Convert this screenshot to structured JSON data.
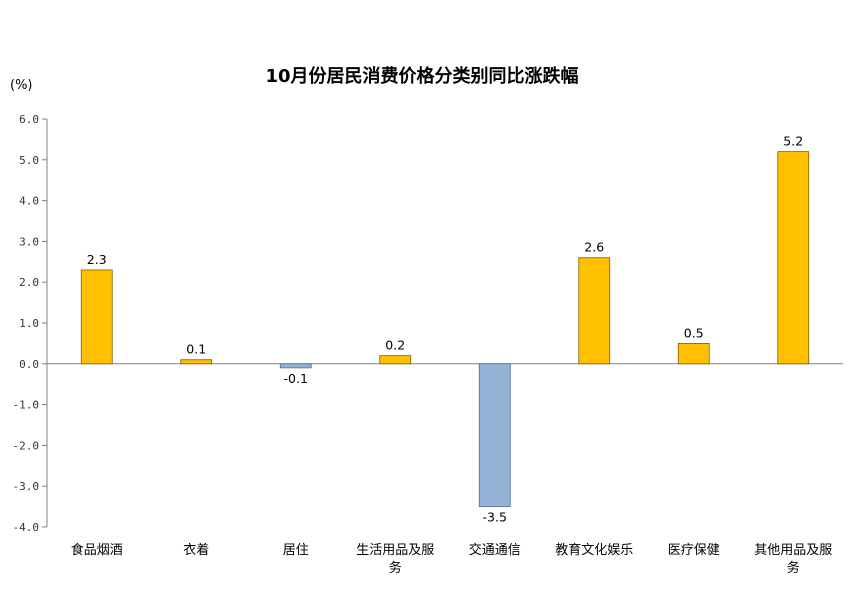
{
  "chart_data": {
    "type": "bar",
    "title": "10月份居民消费价格分类别同比涨跌幅",
    "unit_label": "(%)",
    "categories": [
      "食品烟酒",
      "衣着",
      "居住",
      "生活用品及服务",
      "交通通信",
      "教育文化娱乐",
      "医疗保健",
      "其他用品及服务"
    ],
    "values": [
      2.3,
      0.1,
      -0.1,
      0.2,
      -3.5,
      2.6,
      0.5,
      5.2
    ],
    "value_labels": [
      "2.3",
      "0.1",
      "-0.1",
      "0.2",
      "-3.5",
      "2.6",
      "0.5",
      "5.2"
    ],
    "yticks": [
      "6.0",
      "5.0",
      "4.0",
      "3.0",
      "2.0",
      "1.0",
      "0.0",
      "-1.0",
      "-2.0",
      "-3.0",
      "-4.0"
    ],
    "ylim": [
      -4,
      6
    ],
    "grid": false,
    "colors": {
      "positive": "#FFC000",
      "negative": "#95B3D7",
      "outline": "#7F6000",
      "axis": "#808080"
    }
  }
}
